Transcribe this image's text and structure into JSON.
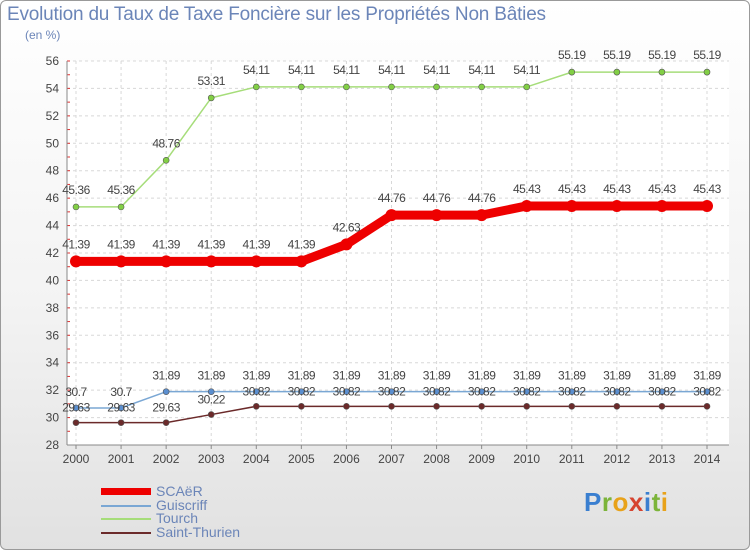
{
  "header": {
    "title": "Evolution du Taux de Taxe Foncière sur les Propriétés Non Bâties",
    "unit": "(en %)"
  },
  "brand": {
    "name": "Proxiti",
    "letters": [
      {
        "ch": "P",
        "color": "#3a7fd0"
      },
      {
        "ch": "r",
        "color": "#7cb43a"
      },
      {
        "ch": "o",
        "color": "#e8a21a"
      },
      {
        "ch": "x",
        "color": "#d64430"
      },
      {
        "ch": "i",
        "color": "#3a7fd0"
      },
      {
        "ch": "t",
        "color": "#7cb43a"
      },
      {
        "ch": "i",
        "color": "#e8a21a"
      }
    ]
  },
  "chart_data": {
    "type": "line",
    "title": "Evolution du Taux de Taxe Foncière sur les Propriétés Non Bâties",
    "ylabel": "(en %)",
    "xlabel": "",
    "ylim": [
      28,
      56
    ],
    "yticks": [
      28,
      30,
      32,
      34,
      36,
      38,
      40,
      42,
      44,
      46,
      48,
      50,
      52,
      54,
      56
    ],
    "grid": true,
    "legend_position": "bottom-left",
    "categories": [
      "2000",
      "2001",
      "2002",
      "2003",
      "2004",
      "2005",
      "2006",
      "2007",
      "2008",
      "2009",
      "2010",
      "2011",
      "2012",
      "2013",
      "2014"
    ],
    "series": [
      {
        "name": "Saint-Thurien",
        "color": "#6b2a2a",
        "marker": "#6b2a2a",
        "values": [
          29.63,
          29.63,
          29.63,
          30.22,
          30.82,
          30.82,
          30.82,
          30.82,
          30.82,
          30.82,
          30.82,
          30.82,
          30.82,
          30.82,
          30.82
        ],
        "labels": [
          "29.63",
          "29.63",
          "29.63",
          "30.22",
          "30.82",
          "30.82",
          "30.82",
          "30.82",
          "30.82",
          "30.82",
          "30.82",
          "30.82",
          "30.82",
          "30.82",
          "30.82"
        ]
      },
      {
        "name": "Guiscriff",
        "color": "#7aa7d4",
        "marker": "#5b8fd0",
        "values": [
          30.7,
          30.7,
          31.89,
          31.89,
          31.89,
          31.89,
          31.89,
          31.89,
          31.89,
          31.89,
          31.89,
          31.89,
          31.89,
          31.89,
          31.89
        ],
        "labels": [
          "30.7",
          "30.7",
          "31.89",
          "31.89",
          "31.89",
          "31.89",
          "31.89",
          "31.89",
          "31.89",
          "31.89",
          "31.89",
          "31.89",
          "31.89",
          "31.89",
          "31.89"
        ]
      },
      {
        "name": "Tourch",
        "color": "#a6dd7a",
        "marker": "#82cf45",
        "values": [
          45.36,
          45.36,
          48.76,
          53.31,
          54.11,
          54.11,
          54.11,
          54.11,
          54.11,
          54.11,
          54.11,
          55.19,
          55.19,
          55.19,
          55.19
        ],
        "labels": [
          "45.36",
          "45.36",
          "48.76",
          "53.31",
          "54.11",
          "54.11",
          "54.11",
          "54.11",
          "54.11",
          "54.11",
          "54.11",
          "55.19",
          "55.19",
          "55.19",
          "55.19"
        ]
      },
      {
        "name": "SCAëR",
        "color": "#ee0000",
        "marker": "#ee0000",
        "values": [
          41.39,
          41.39,
          41.39,
          41.39,
          41.39,
          41.39,
          42.63,
          44.76,
          44.76,
          44.76,
          45.43,
          45.43,
          45.43,
          45.43,
          45.43
        ],
        "labels": [
          "41.39",
          "41.39",
          "41.39",
          "41.39",
          "41.39",
          "41.39",
          "42.63",
          "44.76",
          "44.76",
          "44.76",
          "45.43",
          "45.43",
          "45.43",
          "45.43",
          "45.43"
        ]
      }
    ],
    "legend": [
      "SCAëR",
      "Guiscriff",
      "Tourch",
      "Saint-Thurien"
    ]
  }
}
